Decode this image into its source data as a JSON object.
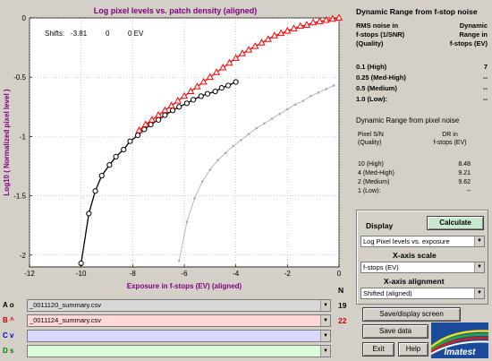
{
  "chart_data": {
    "type": "line",
    "title": "Log pixel levels vs. patch density (aligned)",
    "xlabel": "Exposure in f-stops (EV) (aligned)",
    "ylabel": "Log10 ( Normalized pixel level )",
    "xlim": [
      -12,
      0
    ],
    "ylim": [
      -2.1,
      0
    ],
    "xticks": [
      -12,
      -10,
      -8,
      -6,
      -4,
      -2,
      0
    ],
    "yticks": [
      0,
      -0.5,
      -1,
      -1.5,
      -2
    ],
    "xtick_labels": [
      "-12",
      "-10",
      "-8",
      "-6",
      "-4",
      "-2",
      "0"
    ],
    "ytick_labels": [
      "0",
      "-0.5",
      "-1",
      "-1.5",
      "-2"
    ],
    "grid": true,
    "series": [
      {
        "color": "#000000",
        "marker": "circle",
        "x": [
          -10.0,
          -9.7,
          -9.45,
          -9.2,
          -8.9,
          -8.65,
          -8.35,
          -8.1,
          -7.8,
          -7.55,
          -7.3,
          -7.0,
          -6.75,
          -6.45,
          -6.2,
          -5.9,
          -5.65,
          -5.35,
          -5.1,
          -4.8,
          -4.55,
          -4.3,
          -4.0
        ],
        "y": [
          -2.07,
          -1.65,
          -1.46,
          -1.33,
          -1.24,
          -1.17,
          -1.11,
          -1.04,
          -0.99,
          -0.94,
          -0.9,
          -0.86,
          -0.82,
          -0.78,
          -0.75,
          -0.72,
          -0.69,
          -0.66,
          -0.64,
          -0.62,
          -0.59,
          -0.57,
          -0.54
        ]
      },
      {
        "color": "#ff0000",
        "marker": "triangle",
        "x": [
          -7.75,
          -7.5,
          -7.25,
          -7.0,
          -6.75,
          -6.5,
          -6.25,
          -6.0,
          -5.75,
          -5.5,
          -5.25,
          -5.0,
          -4.75,
          -4.5,
          -4.25,
          -4.0,
          -3.75,
          -3.5,
          -3.25,
          -3.0,
          -2.75,
          -2.5,
          -2.25,
          -2.0,
          -1.75,
          -1.5,
          -1.25,
          -1.0,
          -0.75,
          -0.5,
          -0.25,
          0.0
        ],
        "y": [
          -0.95,
          -0.9,
          -0.86,
          -0.82,
          -0.78,
          -0.74,
          -0.7,
          -0.66,
          -0.62,
          -0.58,
          -0.54,
          -0.5,
          -0.46,
          -0.42,
          -0.38,
          -0.34,
          -0.3,
          -0.27,
          -0.24,
          -0.21,
          -0.18,
          -0.15,
          -0.13,
          -0.11,
          -0.09,
          -0.07,
          -0.06,
          -0.04,
          -0.03,
          -0.02,
          -0.01,
          0.0
        ]
      },
      {
        "color": "#aaaaaa",
        "marker": "dot",
        "x": [
          -6.2,
          -5.9,
          -5.6,
          -5.3,
          -5.0,
          -4.7,
          -4.4,
          -4.1,
          -3.8,
          -3.5,
          -3.2,
          -2.9,
          -2.6,
          -2.3,
          -2.0,
          -1.7,
          -1.4,
          -1.1,
          -0.8,
          -0.5,
          -0.2
        ],
        "y": [
          -2.05,
          -1.72,
          -1.52,
          -1.38,
          -1.28,
          -1.2,
          -1.14,
          -1.08,
          -1.03,
          -0.98,
          -0.93,
          -0.89,
          -0.85,
          -0.81,
          -0.77,
          -0.73,
          -0.7,
          -0.66,
          -0.63,
          -0.6,
          -0.57
        ]
      }
    ],
    "annotation": {
      "shifts_label": "Shifts:",
      "shift_a": "-3.81",
      "shift_b": "0",
      "shift_c": "0 EV"
    }
  },
  "right_panel": {
    "title1": "Dynamic Range from f-stop noise",
    "hdr_left": [
      "RMS noise in",
      "f-stops (1/SNR)",
      "(Quality)"
    ],
    "hdr_right": [
      "Dynamic",
      "Range in",
      "f-stops (EV)"
    ],
    "rows1": [
      {
        "q": "0.1   (High)",
        "v": "7"
      },
      {
        "q": "0.25 (Med-High)",
        "v": "--"
      },
      {
        "q": "0.5   (Medium)",
        "v": "--"
      },
      {
        "q": "1.0   (Low):",
        "v": "--"
      }
    ],
    "title2": "Dynamic Range from pixel noise",
    "hdr2_left": [
      "Pixel S/N",
      "(Quality)"
    ],
    "hdr2_right": [
      "DR in",
      "f-stops (EV)"
    ],
    "rows2": [
      {
        "q": "10   (High)",
        "v": "8.48"
      },
      {
        "q": "4 (Med-High)",
        "v": "9.21"
      },
      {
        "q": "2   (Medium)",
        "v": "9.62"
      },
      {
        "q": "1   (Low):",
        "v": "--"
      }
    ]
  },
  "controls": {
    "display_label": "Display",
    "calculate_label": "Calculate",
    "display_value": "Log Pixel levels vs. exposure",
    "xscale_label": "X-axis scale",
    "xscale_value": "f-stops (EV)",
    "xalign_label": "X-axis alignment",
    "xalign_value": "Shifted (aligned)",
    "save_display_label": "Save/display screen",
    "save_data_label": "Save data",
    "exit_label": "Exit",
    "help_label": "Help",
    "logo_text": "Imatest"
  },
  "files": {
    "n_header": "N",
    "rows": [
      {
        "label": "A o",
        "name": "_0011120_summary.csv",
        "count": "19",
        "bg": "#d8d8d8",
        "label_color": "#000000",
        "count_color": "#000000"
      },
      {
        "label": "B ^",
        "name": "_0011124_summary.csv",
        "count": "22",
        "bg": "#ffd8d8",
        "label_color": "#cc0000",
        "count_color": "#cc0000"
      },
      {
        "label": "C v",
        "name": "",
        "count": "",
        "bg": "#d8d8ff",
        "label_color": "#0000cc",
        "count_color": "#0000cc"
      },
      {
        "label": "D s",
        "name": "",
        "count": "",
        "bg": "#d8ffd8",
        "label_color": "#008000",
        "count_color": "#008000"
      }
    ]
  }
}
